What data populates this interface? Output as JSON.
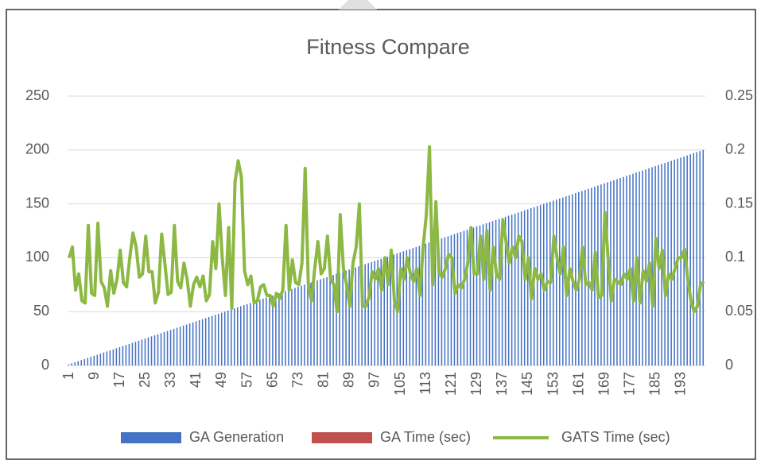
{
  "chart_data": {
    "type": "bar",
    "title": "Fitness Compare",
    "categories": [
      1,
      null,
      null,
      null,
      null,
      null,
      null,
      null,
      9,
      null,
      null,
      null,
      null,
      null,
      null,
      null,
      17,
      null,
      null,
      null,
      null,
      null,
      null,
      null,
      25,
      null,
      null,
      null,
      null,
      null,
      null,
      null,
      33,
      null,
      null,
      null,
      null,
      null,
      null,
      null,
      41,
      null,
      null,
      null,
      null,
      null,
      null,
      null,
      49,
      null,
      null,
      null,
      null,
      null,
      null,
      null,
      57,
      null,
      null,
      null,
      null,
      null,
      null,
      null,
      65,
      null,
      null,
      null,
      null,
      null,
      null,
      null,
      73,
      null,
      null,
      null,
      null,
      null,
      null,
      null,
      81,
      null,
      null,
      null,
      null,
      null,
      null,
      null,
      89,
      null,
      null,
      null,
      null,
      null,
      null,
      null,
      97,
      null,
      null,
      null,
      null,
      null,
      null,
      null,
      105,
      null,
      null,
      null,
      null,
      null,
      null,
      null,
      113,
      null,
      null,
      null,
      null,
      null,
      null,
      null,
      121,
      null,
      null,
      null,
      null,
      null,
      null,
      null,
      129,
      null,
      null,
      null,
      null,
      null,
      null,
      null,
      137,
      null,
      null,
      null,
      null,
      null,
      null,
      null,
      145,
      null,
      null,
      null,
      null,
      null,
      null,
      null,
      153,
      null,
      null,
      null,
      null,
      null,
      null,
      null,
      161,
      null,
      null,
      null,
      null,
      null,
      null,
      null,
      169,
      null,
      null,
      null,
      null,
      null,
      null,
      null,
      177,
      null,
      null,
      null,
      null,
      null,
      null,
      null,
      185,
      null,
      null,
      null,
      null,
      null,
      null,
      null,
      193,
      null,
      null,
      null,
      null,
      null,
      null,
      null
    ],
    "series": [
      {
        "name": "GA Generation",
        "color": "#4472c4",
        "type": "bar",
        "values": [
          1,
          2,
          3,
          4,
          5,
          6,
          7,
          8,
          9,
          10,
          11,
          12,
          13,
          14,
          15,
          16,
          17,
          18,
          19,
          20,
          21,
          22,
          23,
          24,
          25,
          26,
          27,
          28,
          29,
          30,
          31,
          32,
          33,
          34,
          35,
          36,
          37,
          38,
          39,
          40,
          41,
          42,
          43,
          44,
          45,
          46,
          47,
          48,
          49,
          50,
          51,
          52,
          53,
          54,
          55,
          56,
          57,
          58,
          59,
          60,
          61,
          62,
          63,
          64,
          65,
          66,
          67,
          68,
          69,
          70,
          71,
          72,
          73,
          74,
          75,
          76,
          77,
          78,
          79,
          80,
          81,
          82,
          83,
          84,
          85,
          86,
          87,
          88,
          89,
          90,
          91,
          92,
          93,
          94,
          95,
          96,
          97,
          98,
          99,
          100,
          101,
          102,
          103,
          104,
          105,
          106,
          107,
          108,
          109,
          110,
          111,
          112,
          113,
          114,
          115,
          116,
          117,
          118,
          119,
          120,
          121,
          122,
          123,
          124,
          125,
          126,
          127,
          128,
          129,
          130,
          131,
          132,
          133,
          134,
          135,
          136,
          137,
          138,
          139,
          140,
          141,
          142,
          143,
          144,
          145,
          146,
          147,
          148,
          149,
          150,
          151,
          152,
          153,
          154,
          155,
          156,
          157,
          158,
          159,
          160,
          161,
          162,
          163,
          164,
          165,
          166,
          167,
          168,
          169,
          170,
          171,
          172,
          173,
          174,
          175,
          176,
          177,
          178,
          179,
          180,
          181,
          182,
          183,
          184,
          185,
          186,
          187,
          188,
          189,
          190,
          191,
          192,
          193,
          194,
          195,
          196,
          197,
          198,
          199,
          200
        ]
      },
      {
        "name": "GA Time (sec)",
        "color": "#c0504d",
        "type": "bar",
        "values": [
          null,
          null,
          null,
          null,
          null,
          null,
          null,
          null,
          null,
          null,
          null,
          null,
          null,
          null,
          null,
          null,
          null,
          null,
          null,
          null,
          null,
          null,
          null,
          null,
          null,
          null,
          null,
          null,
          null,
          null,
          null,
          null,
          null,
          null,
          null,
          null,
          null,
          null,
          null,
          null,
          null,
          null,
          null,
          null,
          null,
          null,
          null,
          null,
          null,
          null,
          null,
          null,
          null,
          null,
          null,
          null,
          null,
          null,
          null,
          null,
          null,
          null,
          null,
          null,
          null,
          null,
          null,
          null,
          null,
          null,
          null,
          null,
          null,
          null,
          null,
          null,
          null,
          null,
          null,
          null,
          null,
          null,
          null,
          null,
          null,
          null,
          null,
          null,
          null,
          null,
          null,
          null,
          null,
          null,
          null,
          null,
          null,
          null,
          null,
          null,
          null,
          null,
          null,
          null,
          null,
          null,
          null,
          null,
          null,
          null,
          null,
          null,
          null,
          null,
          null,
          null,
          null,
          null,
          null,
          null,
          null,
          null,
          null,
          null,
          null,
          null,
          null,
          null,
          null,
          null,
          null,
          null,
          null,
          null,
          null,
          null,
          null,
          null,
          null,
          null,
          null,
          null,
          null,
          null,
          null,
          null,
          null,
          null,
          null,
          null,
          null,
          null,
          null,
          null,
          null,
          null,
          null,
          null,
          null,
          null,
          null,
          null,
          null,
          null,
          null,
          null,
          null,
          null,
          null,
          null,
          null,
          null,
          null,
          null,
          null,
          null,
          null,
          null,
          null,
          null,
          null,
          null,
          null,
          null,
          null,
          null,
          null,
          null,
          null,
          null,
          null,
          null,
          null,
          null,
          null,
          null,
          null,
          null,
          null,
          null
        ]
      },
      {
        "name": "GATS Time (sec)",
        "color": "#8cb843",
        "type": "line",
        "axis": "y2",
        "values": [
          0.1,
          0.11,
          0.07,
          0.085,
          0.06,
          0.058,
          0.13,
          0.067,
          0.065,
          0.132,
          0.078,
          0.072,
          0.055,
          0.088,
          0.067,
          0.08,
          0.107,
          0.077,
          0.073,
          0.1,
          0.123,
          0.11,
          0.082,
          0.085,
          0.12,
          0.087,
          0.087,
          0.058,
          0.068,
          0.122,
          0.095,
          0.066,
          0.068,
          0.13,
          0.078,
          0.072,
          0.095,
          0.08,
          0.055,
          0.075,
          0.082,
          0.073,
          0.083,
          0.06,
          0.066,
          0.115,
          0.09,
          0.15,
          0.1,
          0.065,
          0.128,
          0.053,
          0.17,
          0.19,
          0.175,
          0.088,
          0.075,
          0.083,
          0.058,
          0.06,
          0.073,
          0.075,
          0.065,
          0.065,
          0.055,
          0.067,
          0.062,
          0.07,
          0.13,
          0.07,
          0.098,
          0.077,
          0.075,
          0.095,
          0.183,
          0.075,
          0.06,
          0.09,
          0.115,
          0.085,
          0.09,
          0.12,
          0.08,
          0.075,
          0.05,
          0.14,
          0.09,
          0.075,
          0.055,
          0.095,
          0.11,
          0.15,
          0.055,
          0.055,
          0.063,
          0.087,
          0.08,
          0.09,
          0.07,
          0.1,
          0.075,
          0.107,
          0.06,
          0.05,
          0.09,
          0.08,
          0.1,
          0.085,
          0.078,
          0.09,
          0.065,
          0.11,
          0.14,
          0.203,
          0.075,
          0.152,
          0.085,
          0.082,
          0.09,
          0.103,
          0.1,
          0.067,
          0.075,
          0.072,
          0.08,
          0.095,
          0.128,
          0.085,
          0.085,
          0.12,
          0.08,
          0.125,
          0.07,
          0.11,
          0.085,
          0.08,
          0.135,
          0.115,
          0.095,
          0.11,
          0.1,
          0.12,
          0.115,
          0.08,
          0.1,
          0.062,
          0.09,
          0.08,
          0.085,
          0.07,
          0.078,
          0.077,
          0.12,
          0.1,
          0.085,
          0.11,
          0.065,
          0.09,
          0.078,
          0.07,
          0.08,
          0.11,
          0.075,
          0.077,
          0.07,
          0.105,
          0.063,
          0.065,
          0.142,
          0.1,
          0.06,
          0.08,
          0.078,
          0.075,
          0.085,
          0.08,
          0.09,
          0.06,
          0.1,
          0.058,
          0.088,
          0.078,
          0.095,
          0.055,
          0.118,
          0.09,
          0.107,
          0.065,
          0.085,
          0.08,
          0.09,
          0.1,
          0.1,
          0.108,
          0.08,
          0.06,
          0.05,
          0.055,
          0.075,
          0.078
        ]
      }
    ],
    "ylim": [
      0,
      250
    ],
    "yticks": [
      0,
      50,
      100,
      150,
      200,
      250
    ],
    "y2lim": [
      0,
      0.25
    ],
    "y2ticks": [
      0,
      0.05,
      0.1,
      0.15,
      0.2,
      0.25
    ],
    "grid": true,
    "legend": "bottom"
  }
}
